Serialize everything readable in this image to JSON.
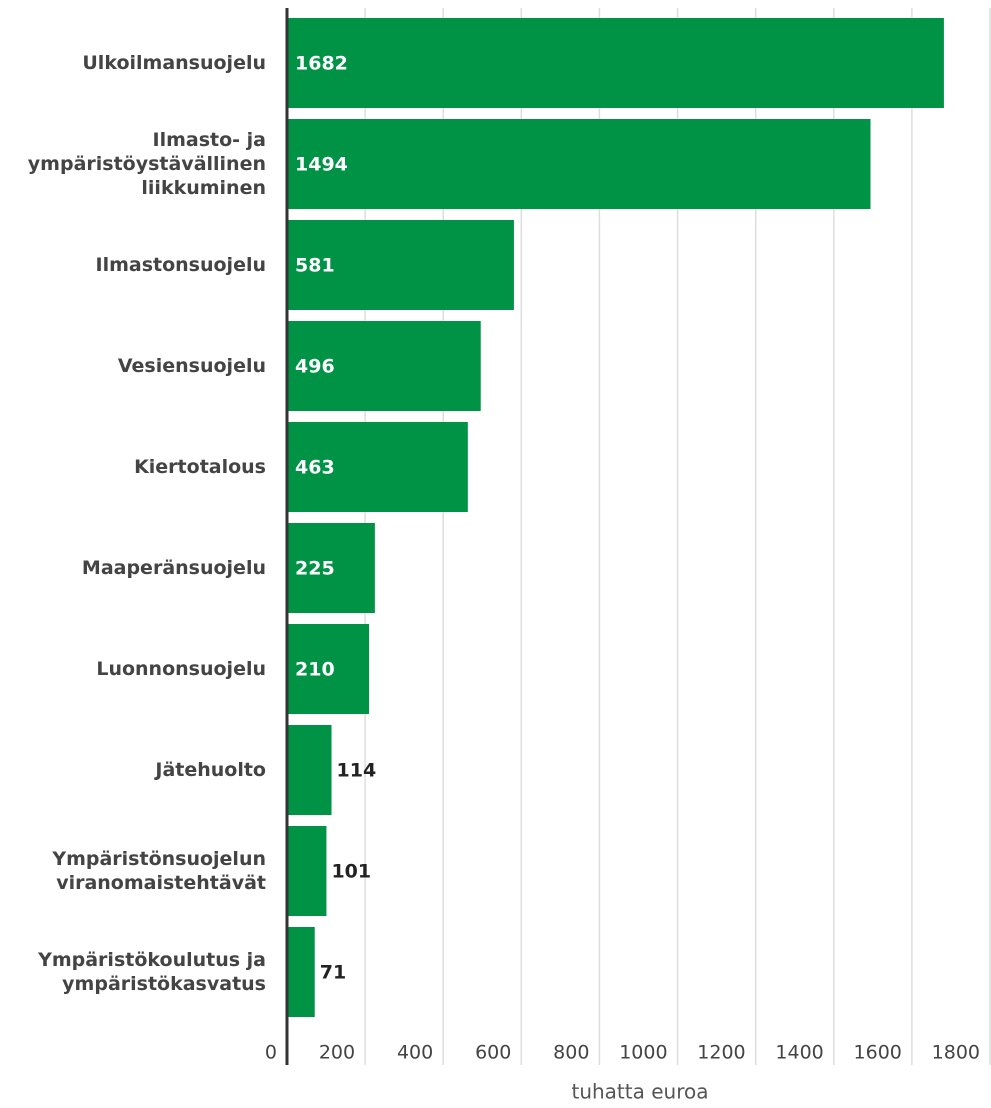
{
  "chart_data": {
    "type": "bar",
    "orientation": "horizontal",
    "categories": [
      "Ulkoilmansuojelu",
      "Ilmasto- ja ympäristöystävällinen liikkuminen",
      "Ilmastonsuojelu",
      "Vesiensuojelu",
      "Kiertotalous",
      "Maaperänsuojelu",
      "Luonnonsuojelu",
      "Jätehuolto",
      "Ympäristönsuojelun viranomaistehtävät",
      "Ympäristökoulutus ja ympäristökasvatus"
    ],
    "values": [
      1682,
      1494,
      581,
      496,
      463,
      225,
      210,
      114,
      101,
      71
    ],
    "color": "#009245",
    "xlim": [
      0,
      1800
    ],
    "xticks": [
      0,
      200,
      400,
      600,
      800,
      1000,
      1200,
      1400,
      1600,
      1800
    ],
    "xlabel": "tuhatta euroa",
    "grid": true
  }
}
